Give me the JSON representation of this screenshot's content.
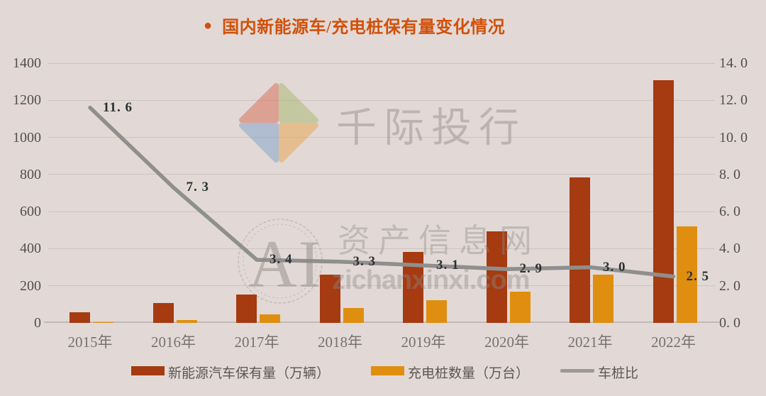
{
  "title": {
    "bullet": "●",
    "text": "国内新能源车/充电桩保有量变化情况"
  },
  "watermarks": {
    "brand_text": "千际投行",
    "center_initials": "AI",
    "center_site_name": "资产信息网",
    "center_site_url": "zichanxinxi.com"
  },
  "colors": {
    "background": "#E2D9D6",
    "title": "#D2500A",
    "nev_bar": "#A63A10",
    "pile_bar": "#E08E10",
    "ratio_line": "#8F8F8D",
    "gridline": "#CDC3C0",
    "axis_line": "#C3B9B6",
    "axis_tick_text": "#52504B",
    "x_tick_text": "#78726C",
    "data_label_text": "#2B3134",
    "legend_text": "#5C5751",
    "logo_red": "#D96A52",
    "logo_green": "#A8B86E",
    "logo_blue": "#7FA3CC",
    "logo_amber": "#E8A54B"
  },
  "chart_data": {
    "type": "bar",
    "subtype": "grouped bars with secondary-axis line",
    "title": "国内新能源车/充电桩保有量变化情况",
    "categories": [
      "2015年",
      "2016年",
      "2017年",
      "2018年",
      "2019年",
      "2020年",
      "2021年",
      "2022年"
    ],
    "series": [
      {
        "name": "新能源汽车保有量（万辆）",
        "type": "bar",
        "axis": "left",
        "color": "#A63A10",
        "values": [
          58,
          109,
          153,
          261,
          381,
          492,
          784,
          1310
        ]
      },
      {
        "name": "充电桩数量（万台）",
        "type": "bar",
        "axis": "left",
        "color": "#E08E10",
        "values": [
          5,
          15,
          45,
          79,
          122,
          168,
          262,
          521
        ]
      },
      {
        "name": "车桩比",
        "type": "line",
        "axis": "right",
        "color": "#8F8F8D",
        "values": [
          11.6,
          7.3,
          3.4,
          3.3,
          3.1,
          2.9,
          3.0,
          2.5
        ],
        "point_labels": [
          "11. 6",
          "7. 3",
          "3. 4",
          "3. 3",
          "3. 1",
          "2. 9",
          "3. 0",
          "2. 5"
        ]
      }
    ],
    "left_axis": {
      "min": 0,
      "max": 1400,
      "step": 200,
      "tick_labels": [
        "0",
        "200",
        "400",
        "600",
        "800",
        "1000",
        "1200",
        "1400"
      ]
    },
    "right_axis": {
      "min": 0,
      "max": 14,
      "step": 2,
      "tick_labels": [
        "0. 0",
        "2. 0",
        "4. 0",
        "6. 0",
        "8. 0",
        "10. 0",
        "12. 0",
        "14. 0"
      ]
    },
    "grid": true,
    "legend_position": "bottom"
  },
  "legend": {
    "items": [
      {
        "label": "新能源汽车保有量（万辆）",
        "swatch": "bar",
        "color": "#A63A10"
      },
      {
        "label": "充电桩数量（万台）",
        "swatch": "bar",
        "color": "#E08E10"
      },
      {
        "label": "车桩比",
        "swatch": "line",
        "color": "#9A9998"
      }
    ]
  }
}
